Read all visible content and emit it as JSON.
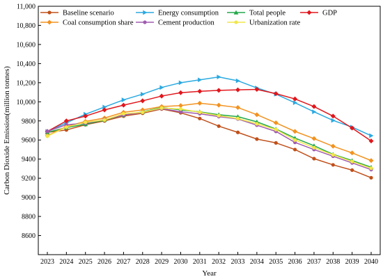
{
  "chart_data": {
    "type": "line",
    "xlabel": "Year",
    "ylabel": "Carbon Dioxide Emission(million tonnes)",
    "ylim": [
      8400,
      11000
    ],
    "yticks": [
      8600,
      8800,
      9000,
      9200,
      9400,
      9600,
      9800,
      10000,
      10200,
      10400,
      10600,
      10800,
      11000
    ],
    "ytick_labels": [
      "8600",
      "8800",
      "9000",
      "9200",
      "9400",
      "9600",
      "9800",
      "10,000",
      "10,200",
      "10,400",
      "10,600",
      "10,800",
      "11,000"
    ],
    "x": [
      "2023",
      "2024",
      "2025",
      "2026",
      "2027",
      "2028",
      "2029",
      "2030",
      "2031",
      "2032",
      "2033",
      "2034",
      "2035",
      "2036",
      "2037",
      "2038",
      "2039",
      "2040"
    ],
    "legend_position": "top",
    "grid": false,
    "series": [
      {
        "name": "Baseline scenario",
        "color": "#c0501a",
        "marker": "circle",
        "values": [
          9680,
          9705,
          9760,
          9800,
          9850,
          9880,
          9925,
          9885,
          9825,
          9745,
          9680,
          9610,
          9570,
          9500,
          9405,
          9340,
          9285,
          9205
        ]
      },
      {
        "name": "Energy consumption",
        "color": "#2aa9e0",
        "marker": "triangle-right",
        "values": [
          9690,
          9780,
          9870,
          9945,
          10020,
          10080,
          10150,
          10200,
          10230,
          10260,
          10220,
          10145,
          10080,
          9990,
          9895,
          9805,
          9735,
          9645
        ]
      },
      {
        "name": "Total people",
        "color": "#22a84a",
        "marker": "triangle-up",
        "values": [
          9680,
          9730,
          9765,
          9810,
          9860,
          9895,
          9940,
          9915,
          9895,
          9865,
          9845,
          9790,
          9715,
          9620,
          9540,
          9450,
          9385,
          9315
        ]
      },
      {
        "name": "GDP",
        "color": "#e0161c",
        "marker": "diamond",
        "values": [
          9690,
          9800,
          9850,
          9915,
          9965,
          10010,
          10060,
          10095,
          10110,
          10120,
          10125,
          10130,
          10085,
          10030,
          9950,
          9850,
          9725,
          9590
        ]
      },
      {
        "name": "Coal consumption share",
        "color": "#f2921f",
        "marker": "diamond",
        "values": [
          9645,
          9740,
          9795,
          9830,
          9890,
          9915,
          9950,
          9960,
          9985,
          9965,
          9940,
          9865,
          9780,
          9690,
          9615,
          9535,
          9465,
          9385
        ]
      },
      {
        "name": "Cement production",
        "color": "#a05cb0",
        "marker": "circle",
        "values": [
          9690,
          9760,
          9775,
          9815,
          9860,
          9890,
          9930,
          9895,
          9875,
          9845,
          9820,
          9755,
          9690,
          9575,
          9500,
          9430,
          9360,
          9290
        ]
      },
      {
        "name": "Urbanization rate",
        "color": "#f2e64a",
        "marker": "circle",
        "values": [
          9640,
          9735,
          9785,
          9810,
          9875,
          9890,
          9935,
          9925,
          9890,
          9855,
          9825,
          9770,
          9710,
          9600,
          9520,
          9445,
          9375,
          9305
        ]
      }
    ]
  }
}
